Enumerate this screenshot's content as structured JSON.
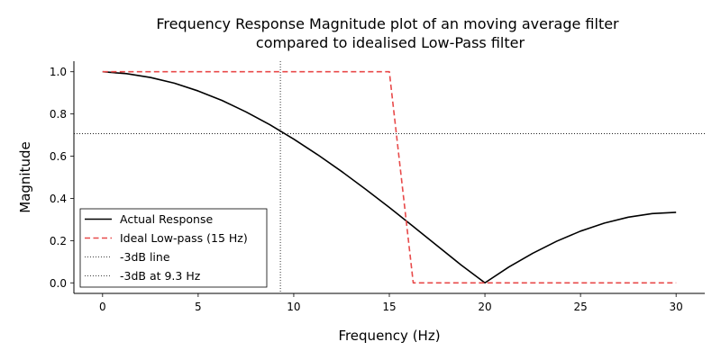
{
  "chart_data": {
    "type": "line",
    "title": [
      "Frequency Response Magnitude plot of an moving average filter",
      "compared to idealised Low-Pass filter"
    ],
    "xlabel": "Frequency (Hz)",
    "ylabel": "Magnitude",
    "xlim": [
      -1.5,
      31.5
    ],
    "ylim": [
      -0.05,
      1.05
    ],
    "xticks": [
      0,
      5,
      10,
      15,
      20,
      25,
      30
    ],
    "yticks": [
      0.0,
      0.2,
      0.4,
      0.6,
      0.8,
      1.0
    ],
    "xtick_labels": [
      "0",
      "5",
      "10",
      "15",
      "20",
      "25",
      "30"
    ],
    "ytick_labels": [
      "0.0",
      "0.2",
      "0.4",
      "0.6",
      "0.8",
      "1.0"
    ],
    "grid": false,
    "legend_position": "lower-left",
    "series": [
      {
        "name": "Actual Response",
        "color": "#000000",
        "style": "solid",
        "x": [
          0,
          1.25,
          2.5,
          3.75,
          5,
          6.25,
          7.5,
          8.75,
          10,
          11.25,
          12.5,
          13.75,
          15,
          16.25,
          17.5,
          18.75,
          20,
          21.25,
          22.5,
          23.75,
          25,
          26.25,
          27.5,
          28.75,
          30
        ],
        "y": [
          1.0,
          0.991,
          0.973,
          0.946,
          0.909,
          0.864,
          0.81,
          0.749,
          0.681,
          0.607,
          0.528,
          0.444,
          0.357,
          0.267,
          0.176,
          0.085,
          0.0,
          0.075,
          0.14,
          0.197,
          0.245,
          0.283,
          0.311,
          0.328,
          0.334
        ]
      },
      {
        "name": "Ideal Low-pass (15 Hz)",
        "color": "#e84a4a",
        "style": "dashed",
        "x": [
          0,
          1.25,
          2.5,
          3.75,
          5,
          6.25,
          7.5,
          8.75,
          10,
          11.25,
          12.5,
          13.75,
          15,
          16.25,
          17.5,
          18.75,
          20,
          21.25,
          22.5,
          23.75,
          25,
          26.25,
          27.5,
          28.75,
          30
        ],
        "y": [
          1,
          1,
          1,
          1,
          1,
          1,
          1,
          1,
          1,
          1,
          1,
          1,
          1,
          0,
          0,
          0,
          0,
          0,
          0,
          0,
          0,
          0,
          0,
          0,
          0
        ]
      }
    ],
    "reference_lines": [
      {
        "name": "-3dB line",
        "orientation": "horizontal",
        "value": 0.7071,
        "color": "#000000",
        "style": "dotted"
      },
      {
        "name": "-3dB at 9.3 Hz",
        "orientation": "vertical",
        "value": 9.3,
        "color": "#000000",
        "style": "dotted"
      }
    ]
  }
}
